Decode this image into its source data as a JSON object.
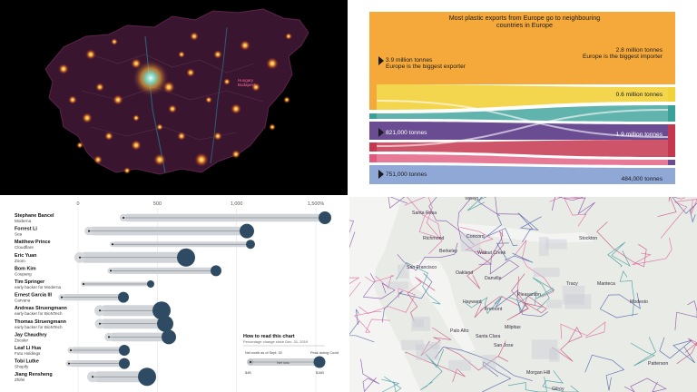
{
  "map_panel": {
    "city_label": "Hungary\nBudapest"
  },
  "sankey": {
    "title_line1": "Most plastic exports from Europe go to neighbouring",
    "title_line2": "countries in Europe",
    "left_labels": [
      {
        "text": "3.9 million tonnes"
      },
      {
        "text": "Europe is the biggest exporter"
      },
      {
        "text": "821,000 tonnes"
      },
      {
        "text": "751,000 tonnes"
      }
    ],
    "right_labels": [
      {
        "text": "2.8 million tonnes"
      },
      {
        "text": "Europe is the biggest importer"
      },
      {
        "text": "0.6 million tonnes"
      },
      {
        "text": "1.9 million tonnes"
      },
      {
        "text": "484,000 tonnes"
      }
    ],
    "colors": {
      "europe": "#f5a93a",
      "purple": "#6a4c93",
      "blue": "#8fa8d6",
      "teal": "#3aa198",
      "red": "#c5364f",
      "yellow": "#f2d13b",
      "pink": "#e15a7d"
    }
  },
  "dumbbell": {
    "ticks": [
      "0",
      "500",
      "1,000",
      "1,500%"
    ],
    "rows": [
      {
        "name": "Stephane Bancel",
        "company": "Moderna"
      },
      {
        "name": "Forrest Li",
        "company": "Sea"
      },
      {
        "name": "Matthew Prince",
        "company": "Cloudflare"
      },
      {
        "name": "Eric Yuan",
        "company": "Zoom"
      },
      {
        "name": "Bom Kim",
        "company": "Coupang"
      },
      {
        "name": "Tim Springer",
        "company": "early backer for Moderna"
      },
      {
        "name": "Ernest Garcia III",
        "company": "Carvana"
      },
      {
        "name": "Andreas Struengmann",
        "company": "early backer for BioNTech"
      },
      {
        "name": "Thomas Struengmann",
        "company": "early backer for BioNTech"
      },
      {
        "name": "Jay Chaudhry",
        "company": "Zscaler"
      },
      {
        "name": "Leaf Li Hua",
        "company": "Futu Holdings"
      },
      {
        "name": "Tobi Lutke",
        "company": "Shopify"
      },
      {
        "name": "Jiang Rensheng",
        "company": "Zhifei"
      }
    ],
    "legend": {
      "title": "How to read this chart",
      "subtitle": "Percentage change since Dec. 31, 2019",
      "left_label": "Net worth as of Sept. 30",
      "right_label": "Peak during Covid",
      "mid_label": "Net loss",
      "left_value": "$4B",
      "right_value": "$16B"
    },
    "colors": {
      "dot": "#2f4b63",
      "band": "#d0d4d8"
    }
  },
  "bay_map": {
    "cities": [
      "Vallejo",
      "Santa Rosa",
      "Richmond",
      "Concord",
      "Walnut Creek",
      "Berkeley",
      "Stockton",
      "San Francisco",
      "Oakland",
      "Danville",
      "Tracy",
      "Manteca",
      "Hayward",
      "Fremont",
      "Pleasanton",
      "Modesto",
      "Palo Alto",
      "San Jose",
      "Santa Clara",
      "Milpitas",
      "Morgan Hill",
      "Gilroy",
      "Patterson"
    ]
  }
}
